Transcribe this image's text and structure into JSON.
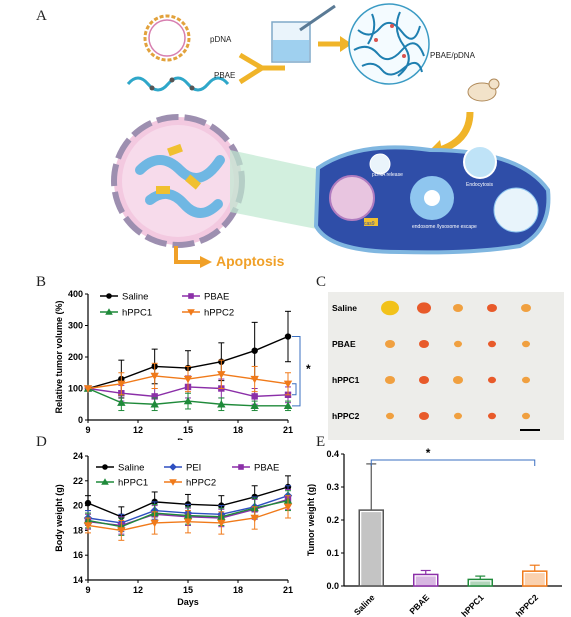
{
  "panel_labels": {
    "a": "A",
    "b": "B",
    "c": "C",
    "d": "D",
    "e": "E"
  },
  "schematic": {
    "pdna": "pDNA",
    "pbae": "PBAE",
    "complex": "PBAE/pDNA",
    "release": "pDNA release",
    "escape": "endosome /lysosome escape",
    "endocytosis": "Endocytosis",
    "apoptosis": "Apoptosis",
    "cas9": "cas9"
  },
  "photo": {
    "rows": [
      "Saline",
      "PBAE",
      "hPPC1",
      "hPPC2"
    ]
  },
  "chart_data": [
    {
      "type": "line",
      "ylabel": "Relative tumor volume (%)",
      "xlabel": "Days",
      "xlim": [
        9,
        21
      ],
      "ylim": [
        0,
        400
      ],
      "xticks": [
        "9",
        "12",
        "15",
        "18",
        "21"
      ],
      "yticks": [
        "0",
        "100",
        "200",
        "300",
        "400"
      ],
      "x": [
        9,
        11,
        13,
        15,
        17,
        19,
        21
      ],
      "series": [
        {
          "name": "Saline",
          "color": "#000000",
          "marker": "circle",
          "values": [
            100,
            130,
            170,
            165,
            185,
            220,
            265
          ],
          "err": [
            0,
            60,
            55,
            55,
            60,
            90,
            80
          ]
        },
        {
          "name": "PBAE",
          "color": "#8b2fa8",
          "marker": "square",
          "values": [
            100,
            85,
            75,
            105,
            100,
            75,
            80
          ],
          "err": [
            0,
            25,
            25,
            35,
            30,
            25,
            25
          ]
        },
        {
          "name": "hPPC1",
          "color": "#1f8a3a",
          "marker": "triangle",
          "values": [
            100,
            55,
            50,
            60,
            50,
            45,
            45
          ],
          "err": [
            0,
            25,
            20,
            25,
            20,
            15,
            15
          ]
        },
        {
          "name": "hPPC2",
          "color": "#f07a1a",
          "marker": "triangle-down",
          "values": [
            100,
            115,
            140,
            130,
            145,
            130,
            115
          ],
          "err": [
            0,
            35,
            40,
            40,
            45,
            40,
            35
          ]
        }
      ],
      "annotation": "*"
    },
    {
      "type": "line",
      "ylabel": "Body weight (g)",
      "xlabel": "Days",
      "xlim": [
        9,
        21
      ],
      "ylim": [
        14,
        24
      ],
      "xticks": [
        "9",
        "12",
        "15",
        "18",
        "21"
      ],
      "yticks": [
        "14",
        "16",
        "18",
        "20",
        "22",
        "24"
      ],
      "x": [
        9,
        11,
        13,
        15,
        17,
        19,
        21
      ],
      "series": [
        {
          "name": "Saline",
          "color": "#000000",
          "marker": "circle",
          "values": [
            20.2,
            19.1,
            20.3,
            20.1,
            20.0,
            20.7,
            21.5
          ],
          "err": [
            0.6,
            0.8,
            0.8,
            0.8,
            0.8,
            0.9,
            0.9
          ]
        },
        {
          "name": "PEI",
          "color": "#2e4fc0",
          "marker": "diamond",
          "values": [
            19.0,
            18.6,
            19.6,
            19.4,
            19.3,
            19.9,
            20.8
          ],
          "err": [
            0.6,
            0.7,
            0.7,
            0.7,
            0.7,
            0.8,
            0.8
          ]
        },
        {
          "name": "PBAE",
          "color": "#8b2fa8",
          "marker": "square",
          "values": [
            18.7,
            18.4,
            19.3,
            19.1,
            19.0,
            19.7,
            20.5
          ],
          "err": [
            0.6,
            0.7,
            0.7,
            0.7,
            0.7,
            0.8,
            0.8
          ]
        },
        {
          "name": "hPPC1",
          "color": "#1f8a3a",
          "marker": "triangle",
          "values": [
            18.8,
            18.3,
            19.4,
            19.2,
            19.1,
            19.8,
            20.4
          ],
          "err": [
            0.6,
            0.7,
            0.7,
            0.7,
            0.7,
            0.8,
            0.8
          ]
        },
        {
          "name": "hPPC2",
          "color": "#f07a1a",
          "marker": "triangle-down",
          "values": [
            18.4,
            18.0,
            18.6,
            18.7,
            18.6,
            19.0,
            19.9
          ],
          "err": [
            0.6,
            0.8,
            0.9,
            0.9,
            0.9,
            0.9,
            0.9
          ]
        }
      ]
    },
    {
      "type": "bar",
      "ylabel": "Tumor weight (g)",
      "ylim": [
        0,
        0.4
      ],
      "yticks": [
        "0.0",
        "0.1",
        "0.2",
        "0.3",
        "0.4"
      ],
      "categories": [
        "Saline",
        "PBAE",
        "hPPC1",
        "hPPC2"
      ],
      "values": [
        0.23,
        0.035,
        0.02,
        0.045
      ],
      "err": [
        0.14,
        0.012,
        0.01,
        0.018
      ],
      "colors": [
        "#555555",
        "#8b2fa8",
        "#1f8a3a",
        "#f07a1a"
      ],
      "annotation": "*"
    }
  ]
}
